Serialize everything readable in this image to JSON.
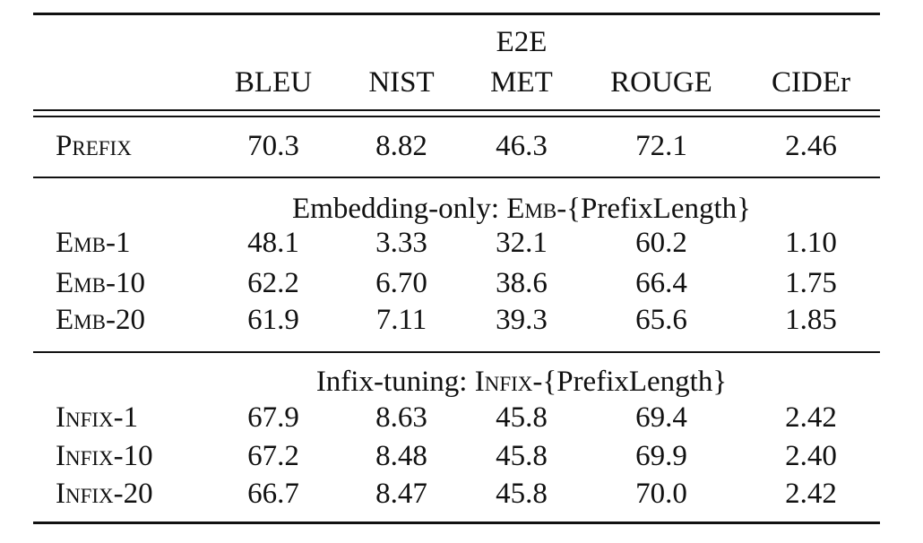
{
  "table": {
    "group_header": "E2E",
    "columns": [
      "BLEU",
      "NIST",
      "MET",
      "ROUGE",
      "CIDEr"
    ],
    "sections": [
      {
        "title": "",
        "rows": [
          {
            "label": "Prefix",
            "values": [
              "70.3",
              "8.82",
              "46.3",
              "72.1",
              "2.46"
            ]
          }
        ]
      },
      {
        "title_prefix": "Embedding-only: ",
        "title_sc": "Emb",
        "title_suffix": "-{PrefixLength}",
        "rows": [
          {
            "label": "Emb-1",
            "values": [
              "48.1",
              "3.33",
              "32.1",
              "60.2",
              "1.10"
            ]
          },
          {
            "label": "Emb-10",
            "values": [
              "62.2",
              "6.70",
              "38.6",
              "66.4",
              "1.75"
            ]
          },
          {
            "label": "Emb-20",
            "values": [
              "61.9",
              "7.11",
              "39.3",
              "65.6",
              "1.85"
            ]
          }
        ]
      },
      {
        "title_prefix": "Infix-tuning: ",
        "title_sc": "Infix",
        "title_suffix": "-{PrefixLength}",
        "rows": [
          {
            "label": "Infix-1",
            "values": [
              "67.9",
              "8.63",
              "45.8",
              "69.4",
              "2.42"
            ]
          },
          {
            "label": "Infix-10",
            "values": [
              "67.2",
              "8.48",
              "45.8",
              "69.9",
              "2.40"
            ]
          },
          {
            "label": "Infix-20",
            "values": [
              "66.7",
              "8.47",
              "45.8",
              "70.0",
              "2.42"
            ]
          }
        ]
      }
    ]
  }
}
